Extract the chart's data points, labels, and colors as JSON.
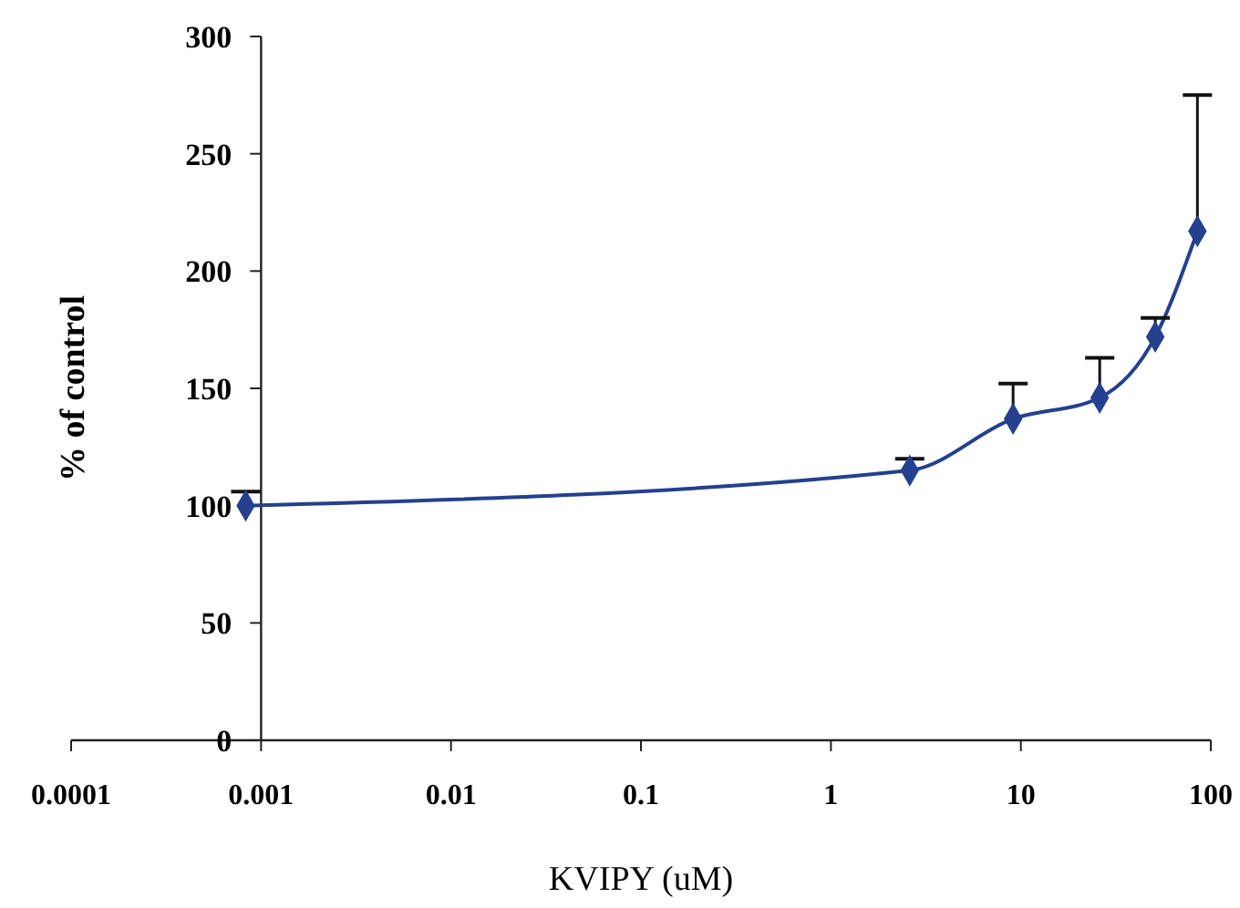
{
  "chart_data": {
    "type": "line",
    "xlabel": "KVIPY (uM)",
    "ylabel": "% of control",
    "log": "x",
    "xlim": [
      0.0001,
      100
    ],
    "xticks": [
      0.0001,
      0.001,
      0.01,
      0.1,
      1,
      10,
      100
    ],
    "ylim": [
      0,
      300
    ],
    "yticks": [
      0,
      50,
      100,
      150,
      200,
      250,
      300
    ],
    "grid": false,
    "marker": "diamond",
    "line_style": "solid",
    "x": [
      0.00083,
      2.6,
      9.1,
      26,
      51,
      85
    ],
    "series": [
      {
        "color": "#24408e",
        "values": [
          100,
          115,
          137,
          146,
          172,
          217
        ],
        "errors": [
          [
            100,
            106
          ],
          [
            115,
            120
          ],
          [
            137,
            152
          ],
          [
            146,
            163
          ],
          [
            172,
            180
          ],
          [
            217,
            275
          ]
        ]
      }
    ]
  }
}
